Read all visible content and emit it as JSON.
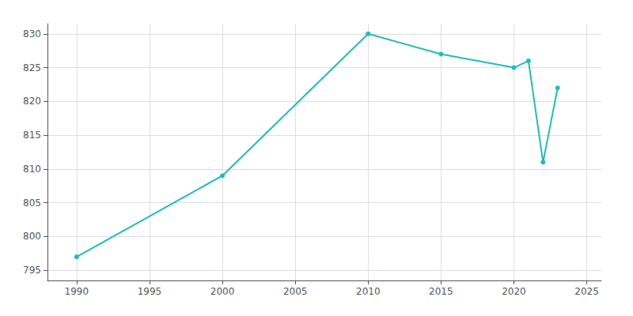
{
  "chart_data": {
    "type": "line",
    "x": [
      1990,
      2000,
      2010,
      2015,
      2020,
      2021,
      2022,
      2023
    ],
    "values": [
      797,
      809,
      830,
      827,
      825,
      826,
      811,
      822
    ],
    "color": "#22BBBB",
    "marker": "circle",
    "xlim": [
      1988,
      2026
    ],
    "ylim": [
      793.5,
      831.5
    ],
    "xticks": [
      1990,
      1995,
      2000,
      2005,
      2010,
      2015,
      2020,
      2025
    ],
    "yticks": [
      795,
      800,
      805,
      810,
      815,
      820,
      825,
      830
    ],
    "grid": true
  }
}
